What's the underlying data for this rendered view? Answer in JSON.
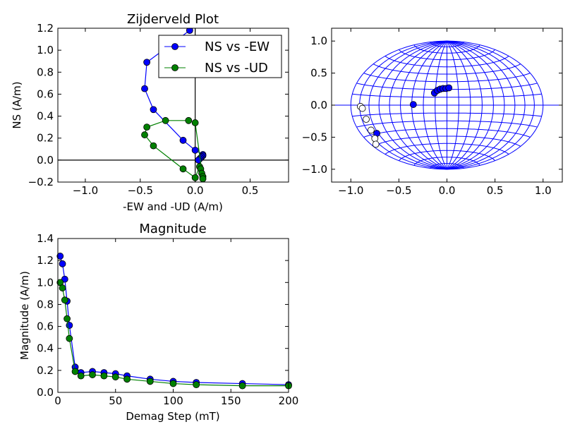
{
  "colors": {
    "blue": "#0000ff",
    "green": "#008000",
    "darkblue": "#0000cc",
    "darkgreen": "#006400"
  },
  "chart_data": [
    {
      "type": "scatter",
      "id": "zijderveld",
      "title": "Zijderveld Plot",
      "xlabel": "-EW and -UD (A/m)",
      "ylabel": "NS (A/m)",
      "xlim": [
        -1.25,
        0.85
      ],
      "ylim": [
        -0.2,
        1.2
      ],
      "xticks": [
        -1.0,
        -0.5,
        0.0,
        0.5
      ],
      "xtick_labels": [
        "−1.0",
        "−0.5",
        "0.0",
        "0.5"
      ],
      "yticks": [
        -0.2,
        0.0,
        0.2,
        0.4,
        0.6,
        0.8,
        1.0,
        1.2
      ],
      "ytick_labels": [
        "−0.2",
        "0.0",
        "0.2",
        "0.4",
        "0.6",
        "0.8",
        "1.0",
        "1.2"
      ],
      "legend_position": "top-right",
      "series": [
        {
          "name": "NS vs -EW",
          "color": "#0000ff",
          "points": [
            [
              0.02,
              1.23
            ],
            [
              -0.05,
              1.18
            ],
            [
              -0.44,
              0.89
            ],
            [
              -0.46,
              0.65
            ],
            [
              -0.38,
              0.46
            ],
            [
              -0.11,
              0.18
            ],
            [
              0.0,
              0.09
            ],
            [
              0.07,
              0.05
            ],
            [
              0.07,
              0.04
            ],
            [
              0.06,
              0.03
            ],
            [
              0.05,
              0.02
            ],
            [
              0.04,
              0.01
            ],
            [
              0.03,
              0.0
            ]
          ]
        },
        {
          "name": "NS vs -UD",
          "color": "#008000",
          "points": [
            [
              -0.06,
              0.36
            ],
            [
              -0.27,
              0.36
            ],
            [
              -0.44,
              0.3
            ],
            [
              -0.46,
              0.23
            ],
            [
              -0.38,
              0.13
            ],
            [
              -0.11,
              -0.08
            ],
            [
              0.0,
              -0.16
            ],
            [
              0.04,
              -0.06
            ],
            [
              0.05,
              -0.08
            ],
            [
              0.06,
              -0.12
            ],
            [
              0.07,
              -0.15
            ],
            [
              0.07,
              -0.17
            ],
            [
              0.0,
              0.34
            ]
          ]
        }
      ]
    },
    {
      "type": "scatter",
      "id": "equal-area",
      "xlim": [
        -1.2,
        1.2
      ],
      "ylim": [
        -1.2,
        1.2
      ],
      "xticks": [
        -1.0,
        -0.5,
        0.0,
        0.5,
        1.0
      ],
      "xtick_labels": [
        "−1.0",
        "−0.5",
        "0.0",
        "0.5",
        "1.0"
      ],
      "yticks": [
        -1.0,
        -0.5,
        0.0,
        0.5,
        1.0
      ],
      "ytick_labels": [
        "−1.0",
        "−0.5",
        "0.0",
        "0.5",
        "1.0"
      ],
      "series": [
        {
          "color": "#0000ff",
          "filled": true,
          "points": [
            [
              -0.35,
              0.01
            ],
            [
              -0.13,
              0.19
            ],
            [
              -0.1,
              0.23
            ],
            [
              -0.07,
              0.25
            ],
            [
              -0.04,
              0.26
            ],
            [
              -0.01,
              0.26
            ],
            [
              0.02,
              0.27
            ],
            [
              -0.73,
              -0.44
            ]
          ]
        },
        {
          "color": "#ffffff",
          "filled": false,
          "points": [
            [
              -0.9,
              -0.02
            ],
            [
              -0.88,
              -0.05
            ],
            [
              -0.84,
              -0.22
            ],
            [
              -0.79,
              -0.39
            ],
            [
              -0.75,
              -0.52
            ],
            [
              -0.74,
              -0.61
            ]
          ]
        }
      ]
    },
    {
      "type": "line",
      "id": "magnitude",
      "title": "Magnitude",
      "xlabel": "Demag Step (mT)",
      "ylabel": "Magnitude (A/m)",
      "xlim": [
        0,
        200
      ],
      "ylim": [
        0,
        1.4
      ],
      "xticks": [
        0,
        50,
        100,
        150,
        200
      ],
      "xtick_labels": [
        "0",
        "50",
        "100",
        "150",
        "200"
      ],
      "yticks": [
        0.0,
        0.2,
        0.4,
        0.6,
        0.8,
        1.0,
        1.2,
        1.4
      ],
      "ytick_labels": [
        "0.0",
        "0.2",
        "0.4",
        "0.6",
        "0.8",
        "1.0",
        "1.2",
        "1.4"
      ],
      "x": [
        2,
        4,
        6,
        8,
        10,
        15,
        20,
        30,
        40,
        50,
        60,
        80,
        100,
        120,
        160,
        200
      ],
      "series": [
        {
          "color": "#0000ff",
          "values": [
            1.24,
            1.17,
            1.03,
            0.83,
            0.61,
            0.23,
            0.18,
            0.19,
            0.18,
            0.17,
            0.15,
            0.12,
            0.1,
            0.09,
            0.08,
            0.07
          ]
        },
        {
          "color": "#008000",
          "values": [
            1.0,
            0.95,
            0.84,
            0.67,
            0.49,
            0.19,
            0.15,
            0.16,
            0.15,
            0.14,
            0.12,
            0.1,
            0.08,
            0.07,
            0.06,
            0.06
          ]
        }
      ]
    }
  ]
}
